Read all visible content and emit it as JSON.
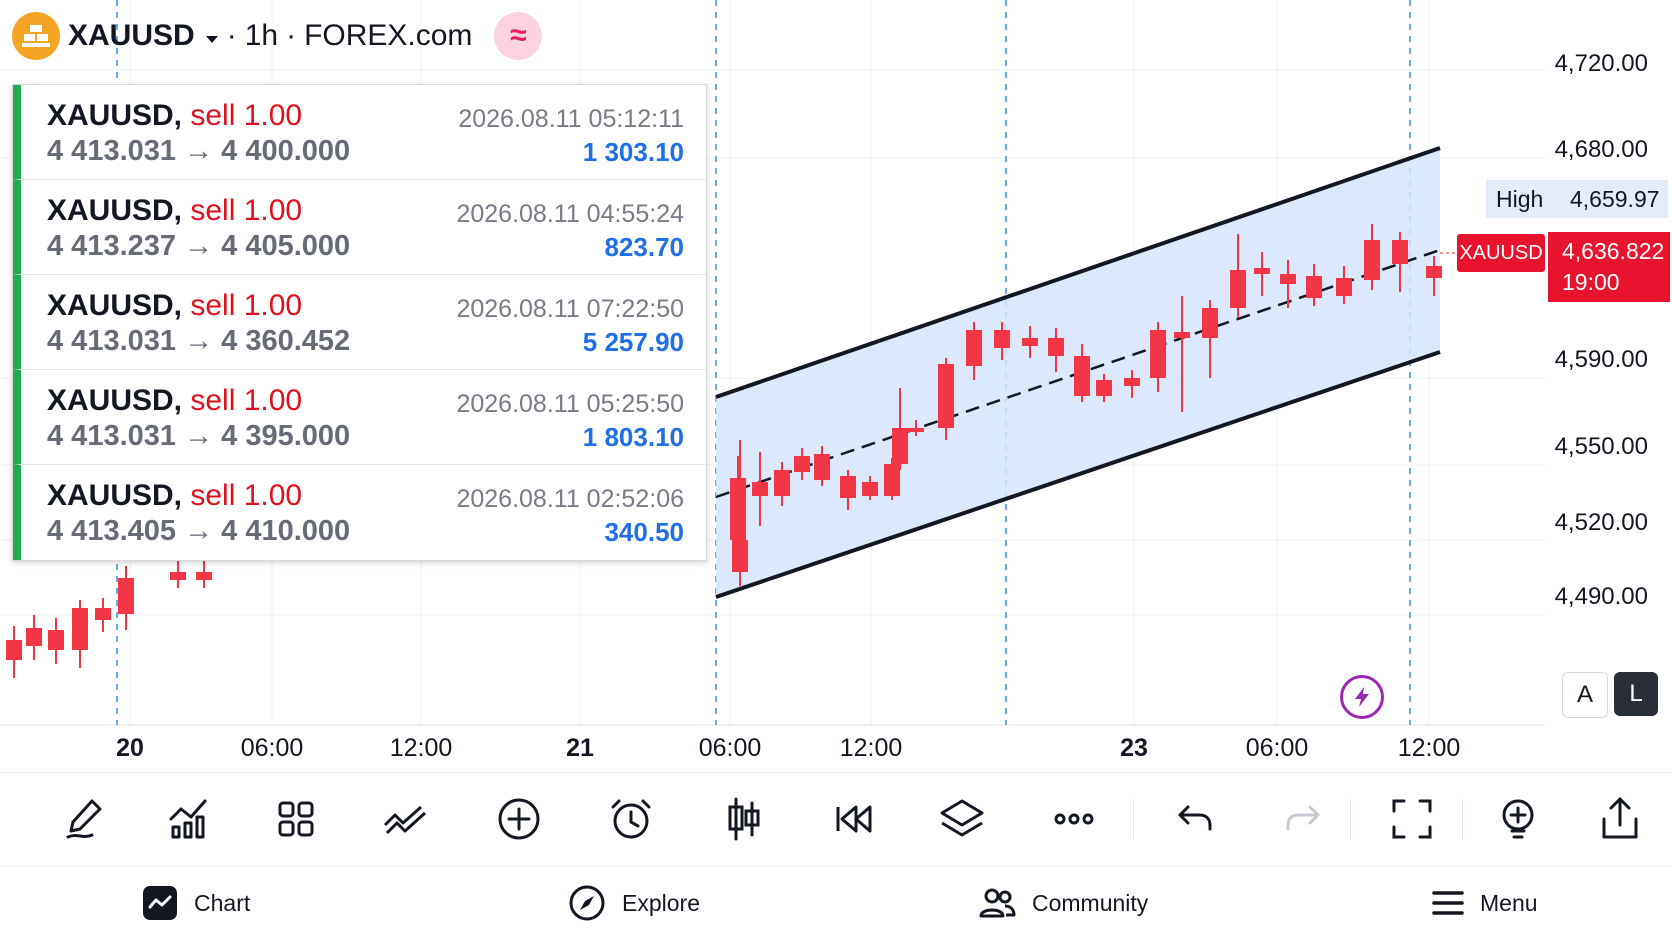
{
  "header": {
    "symbol": "XAUUSD",
    "interval": "1h",
    "exchange": "FOREX.com",
    "separator": "·",
    "colors": {
      "symbol_icon": "#f5a524",
      "wave_button": "#fbd3df"
    },
    "icons": [
      "gold-bars-icon",
      "chevron-down-icon",
      "wave-icon"
    ]
  },
  "trades": [
    {
      "symbol": "XAUUSD,",
      "side": "sell 1.00",
      "prices": "4 413.031 → 4 400.000",
      "time": "2026.08.11 05:12:11",
      "pnl": "1 303.10"
    },
    {
      "symbol": "XAUUSD,",
      "side": "sell 1.00",
      "prices": "4 413.237 → 4 405.000",
      "time": "2026.08.11 04:55:24",
      "pnl": "823.70"
    },
    {
      "symbol": "XAUUSD,",
      "side": "sell 1.00",
      "prices": "4 413.031 → 4 360.452",
      "time": "2026.08.11 07:22:50",
      "pnl": "5 257.90"
    },
    {
      "symbol": "XAUUSD,",
      "side": "sell 1.00",
      "prices": "4 413.031 → 4 395.000",
      "time": "2026.08.11 05:25:50",
      "pnl": "1 803.10"
    },
    {
      "symbol": "XAUUSD,",
      "side": "sell 1.00",
      "prices": "4 413.405 → 4 410.000",
      "time": "2026.08.11 02:52:06",
      "pnl": "340.50"
    }
  ],
  "price_axis": {
    "labels": [
      "4,720.00",
      "4,680.00",
      "4,590.00",
      "4,550.00",
      "4,520.00",
      "4,490.00"
    ],
    "high_label": "High",
    "high_value": "4,659.97",
    "current_symbol": "XAUUSD",
    "current_price": "4,636.822",
    "countdown": "19:00",
    "colors": {
      "up": "#089981",
      "down": "#f23645",
      "channel_fill": "#d6e4fa",
      "price_tag": "#e8142d"
    }
  },
  "time_axis": {
    "labels": [
      {
        "text": "20",
        "bold": true
      },
      {
        "text": "06:00",
        "bold": false
      },
      {
        "text": "12:00",
        "bold": false
      },
      {
        "text": "21",
        "bold": true
      },
      {
        "text": "06:00",
        "bold": false
      },
      {
        "text": "12:00",
        "bold": false
      },
      {
        "text": "23",
        "bold": true
      },
      {
        "text": "06:00",
        "bold": false
      },
      {
        "text": "12:00",
        "bold": false
      }
    ]
  },
  "scale_buttons": {
    "auto": "A",
    "log": "L"
  },
  "toolbar": {
    "icons": [
      "drawing-pencil-icon",
      "indicators-icon",
      "layouts-grid-icon",
      "chart-patterns-icon",
      "add-circle-icon",
      "alarm-icon",
      "candle-type-icon",
      "replay-icon",
      "layers-icon",
      "more-icon",
      "undo-icon",
      "redo-icon",
      "fullscreen-icon",
      "ideas-bulb-icon",
      "share-icon"
    ]
  },
  "nav": {
    "items": [
      {
        "label": "Chart",
        "icon": "chart-icon"
      },
      {
        "label": "Explore",
        "icon": "compass-icon"
      },
      {
        "label": "Community",
        "icon": "community-icon"
      },
      {
        "label": "Menu",
        "icon": "menu-icon"
      }
    ]
  }
}
